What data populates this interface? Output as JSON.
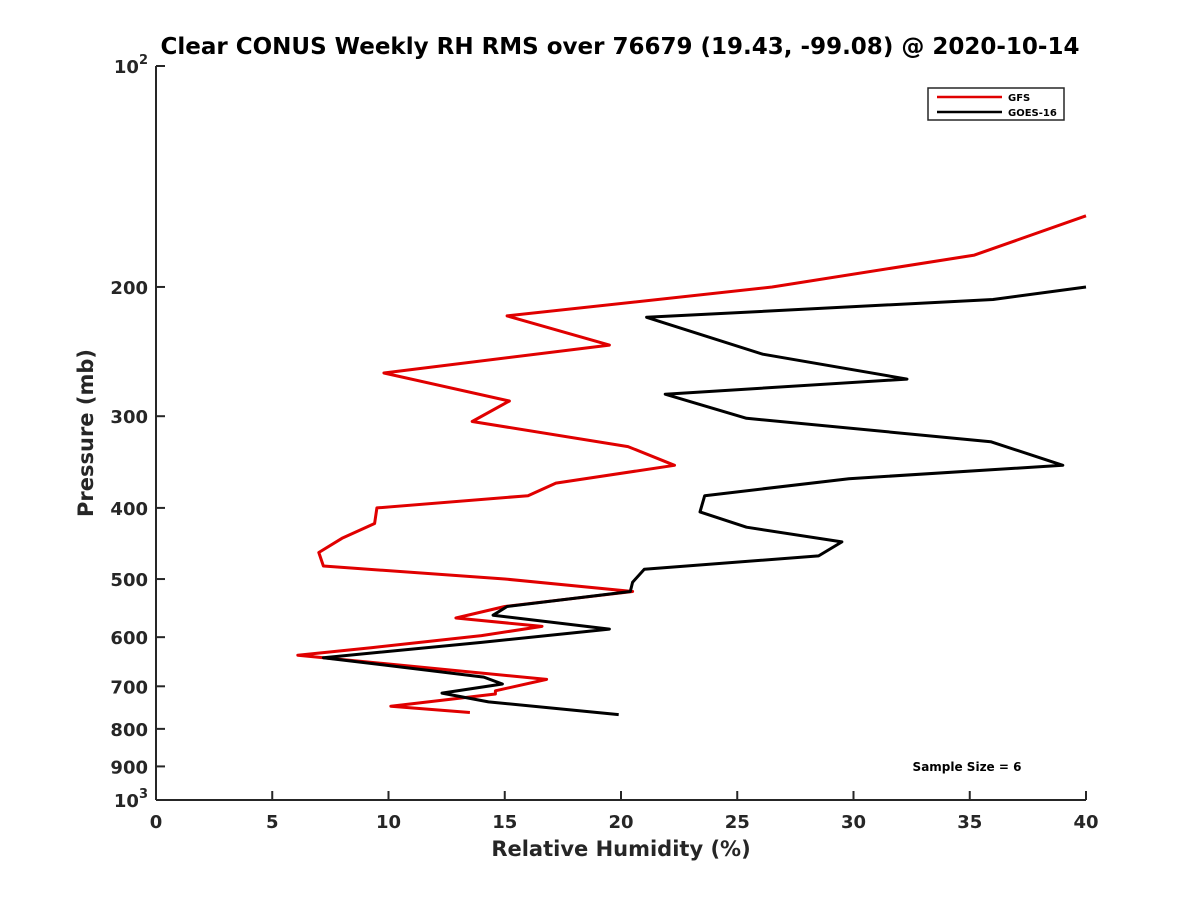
{
  "chart_data": {
    "type": "line",
    "title": "Clear CONUS Weekly RH RMS over 76679 (19.43, -99.08) @ 2020-10-14",
    "xlabel": "Relative Humidity (%)",
    "ylabel": "Pressure (mb)",
    "xlim": [
      0,
      40
    ],
    "ylim": [
      100,
      1000
    ],
    "y_scale": "log",
    "y_reversed": true,
    "grid": false,
    "legend_position": "top-right",
    "x_ticks": [
      "0",
      "5",
      "10",
      "15",
      "20",
      "25",
      "30",
      "35",
      "40"
    ],
    "y_ticks": [
      {
        "value": 100,
        "base": "10",
        "exp": "2"
      },
      {
        "value": 200,
        "label": "200"
      },
      {
        "value": 300,
        "label": "300"
      },
      {
        "value": 400,
        "label": "400"
      },
      {
        "value": 500,
        "label": "500"
      },
      {
        "value": 600,
        "label": "600"
      },
      {
        "value": 700,
        "label": "700"
      },
      {
        "value": 800,
        "label": "800"
      },
      {
        "value": 900,
        "label": "900"
      },
      {
        "value": 1000,
        "base": "10",
        "exp": "3"
      }
    ],
    "series": [
      {
        "name": "GFS",
        "color": "#e00000",
        "points": [
          [
            40,
            160
          ],
          [
            35.2,
            181
          ],
          [
            26.5,
            200
          ],
          [
            15.1,
            219
          ],
          [
            19.5,
            240
          ],
          [
            9.8,
            262
          ],
          [
            15.2,
            286
          ],
          [
            13.6,
            305
          ],
          [
            20.3,
            330
          ],
          [
            22.3,
            350
          ],
          [
            17.2,
            370
          ],
          [
            16.0,
            385
          ],
          [
            9.5,
            400
          ],
          [
            9.4,
            420
          ],
          [
            8.0,
            440
          ],
          [
            7.0,
            460
          ],
          [
            7.2,
            480
          ],
          [
            15.0,
            500
          ],
          [
            20.5,
            520
          ],
          [
            15.0,
            545
          ],
          [
            12.9,
            565
          ],
          [
            16.6,
            580
          ],
          [
            14.0,
            597
          ],
          [
            9.3,
            620
          ],
          [
            6.1,
            635
          ],
          [
            16.8,
            685
          ],
          [
            14.6,
            710
          ],
          [
            14.6,
            717
          ],
          [
            10.1,
            745
          ],
          [
            13.5,
            760
          ]
        ]
      },
      {
        "name": "GOES-16",
        "color": "#000000",
        "points": [
          [
            40,
            200
          ],
          [
            36.0,
            208
          ],
          [
            21.1,
            220
          ],
          [
            26.1,
            247
          ],
          [
            32.3,
            267
          ],
          [
            21.9,
            280
          ],
          [
            25.4,
            302
          ],
          [
            35.9,
            325
          ],
          [
            39.0,
            350
          ],
          [
            29.8,
            365
          ],
          [
            23.6,
            385
          ],
          [
            23.4,
            405
          ],
          [
            25.4,
            425
          ],
          [
            29.5,
            445
          ],
          [
            28.5,
            465
          ],
          [
            21.0,
            485
          ],
          [
            20.5,
            505
          ],
          [
            20.4,
            520
          ],
          [
            15.1,
            545
          ],
          [
            14.5,
            560
          ],
          [
            19.5,
            585
          ],
          [
            14.0,
            610
          ],
          [
            7.2,
            640
          ],
          [
            14.1,
            680
          ],
          [
            14.9,
            695
          ],
          [
            12.3,
            715
          ],
          [
            14.3,
            735
          ],
          [
            19.9,
            765
          ]
        ]
      }
    ],
    "annotations": [
      "Sample Size = 6"
    ]
  }
}
